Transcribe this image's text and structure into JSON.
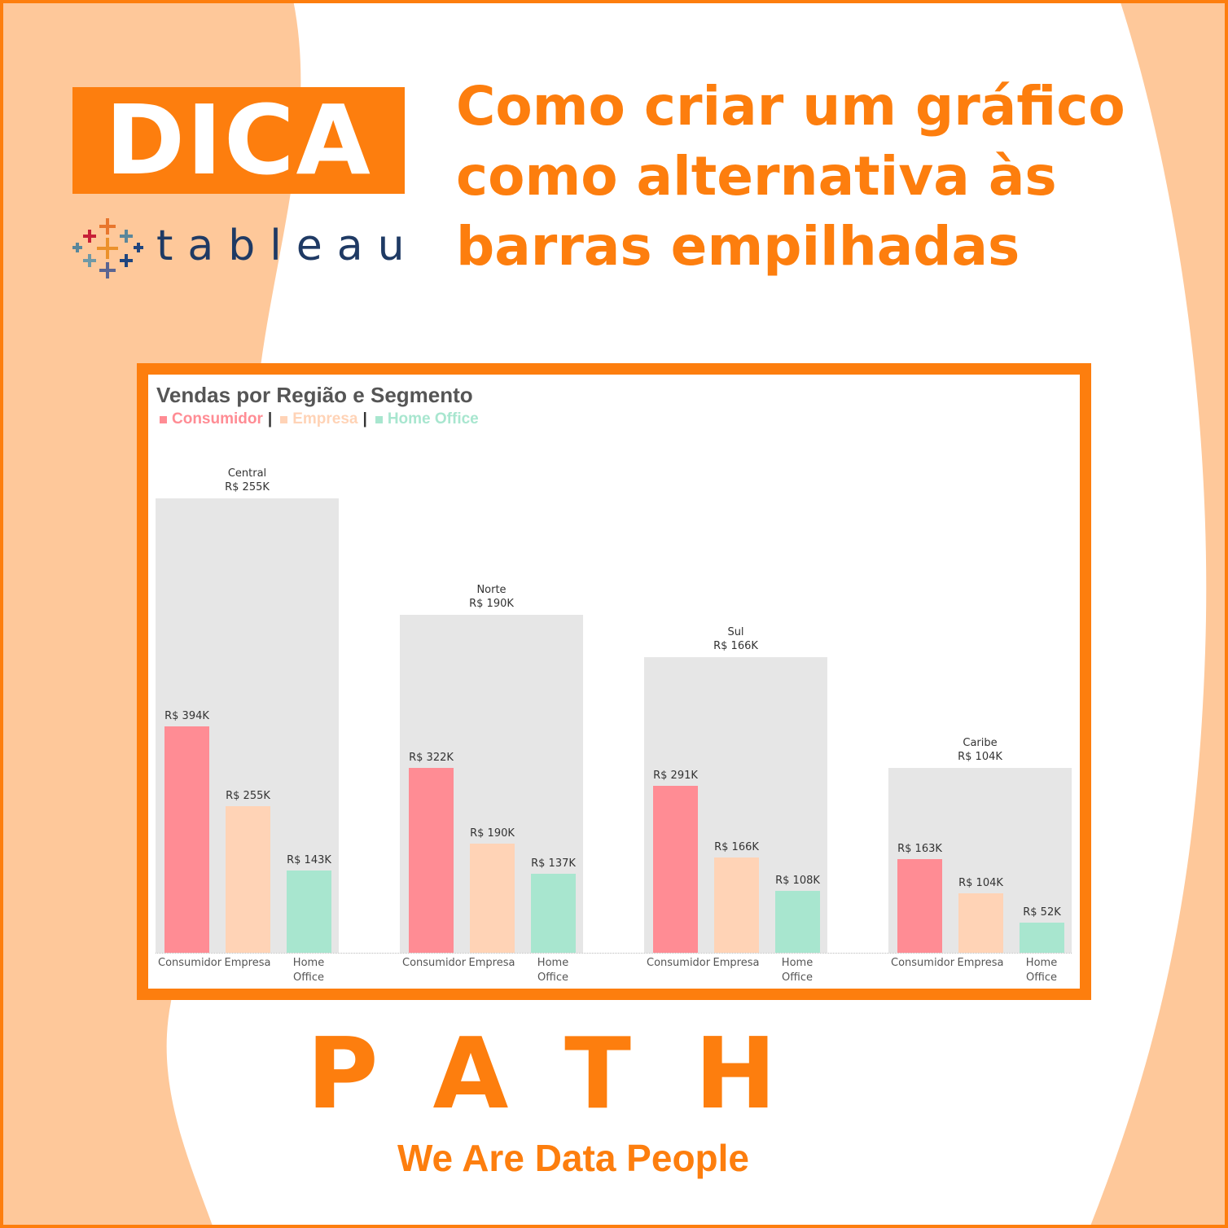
{
  "header": {
    "badge": "DICA",
    "brand": "tableau",
    "title_lines": [
      "Como criar um gráfico",
      "como alternativa às",
      "barras empilhadas"
    ]
  },
  "chart_data": {
    "type": "bar",
    "title": "Vendas por Região e Segmento",
    "categories": [
      "Central",
      "Norte",
      "Sul",
      "Caribe"
    ],
    "region_values": [
      255000,
      190000,
      166000,
      104000
    ],
    "region_value_labels": [
      "R$ 255K",
      "R$ 190K",
      "R$ 166K",
      "R$ 104K"
    ],
    "region_color": "#e6e6e6",
    "series": [
      {
        "name": "Consumidor",
        "color": "#ff8c94",
        "values": [
          394000,
          322000,
          291000,
          163000
        ],
        "value_labels": [
          "R$ 394K",
          "R$ 322K",
          "R$ 291K",
          "R$ 163K"
        ]
      },
      {
        "name": "Empresa",
        "color": "#ffd3b6",
        "values": [
          255000,
          190000,
          166000,
          104000
        ],
        "value_labels": [
          "R$ 255K",
          "R$ 190K",
          "R$ 166K",
          "R$ 104K"
        ]
      },
      {
        "name": "Home Office",
        "color": "#a8e6cf",
        "values": [
          143000,
          137000,
          108000,
          52000
        ],
        "value_labels": [
          "R$ 143K",
          "R$ 137K",
          "R$ 108K",
          "R$ 52K"
        ]
      }
    ],
    "ylim": [
      0,
      864000
    ],
    "y2lim": [
      0,
      279000
    ]
  },
  "footer": {
    "logo": "PATH",
    "tagline": "We Are Data People"
  }
}
